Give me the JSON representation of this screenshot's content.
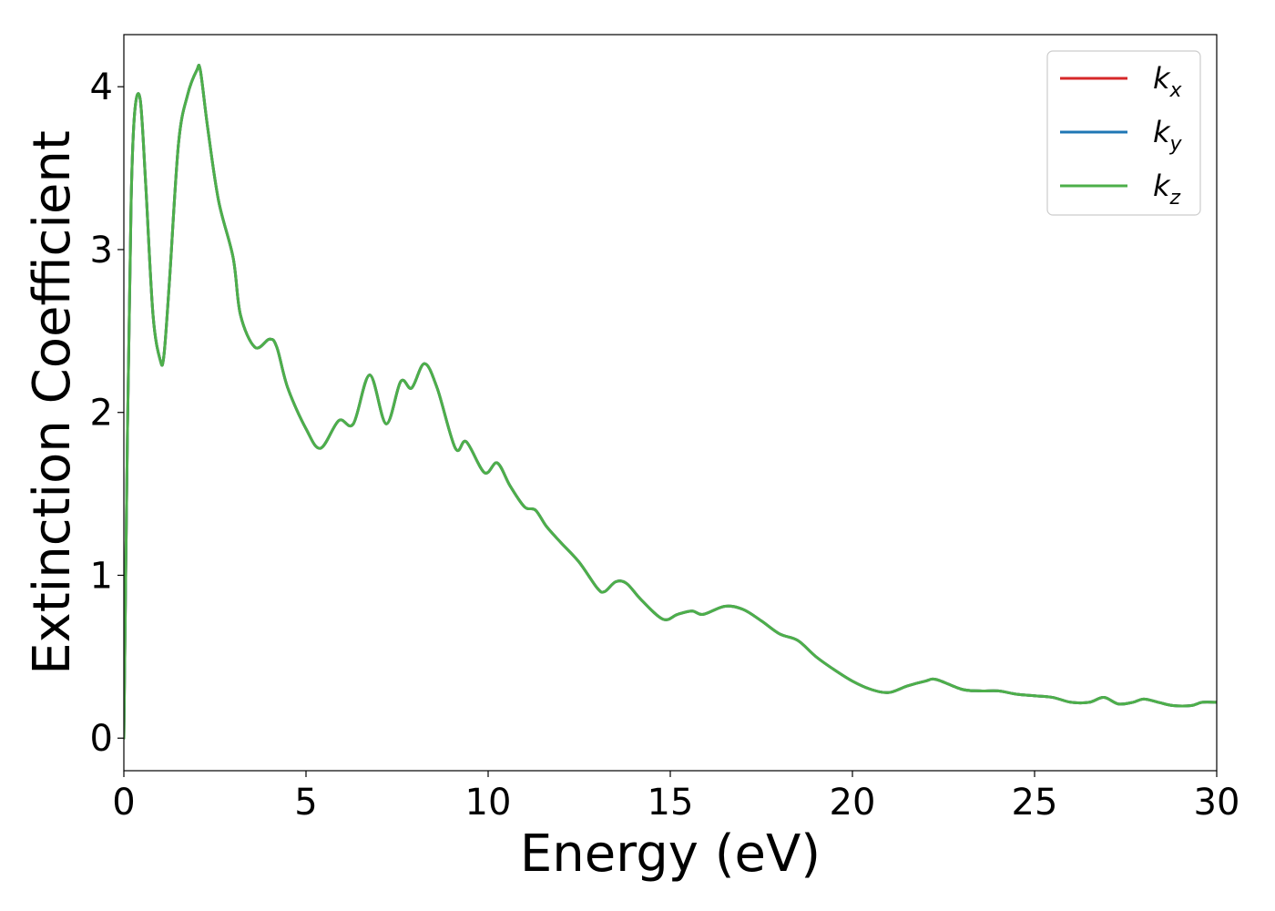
{
  "chart_data": {
    "type": "line",
    "title": "",
    "xlabel": "Energy (eV)",
    "ylabel": "Extinction Coefficient",
    "xlim": [
      0,
      30
    ],
    "ylim": [
      -0.2,
      4.32
    ],
    "xticks": [
      0,
      5,
      10,
      15,
      20,
      25,
      30
    ],
    "yticks": [
      0,
      1,
      2,
      3,
      4
    ],
    "grid": false,
    "legend_position": "top-right",
    "x": [
      0,
      0.1,
      0.2,
      0.3,
      0.45,
      0.6,
      0.8,
      1.0,
      1.1,
      1.25,
      1.5,
      1.75,
      2.0,
      2.1,
      2.3,
      2.6,
      3.0,
      3.2,
      3.6,
      4.0,
      4.2,
      4.5,
      5.0,
      5.4,
      5.9,
      6.3,
      6.75,
      7.2,
      7.6,
      7.9,
      8.25,
      8.6,
      9.1,
      9.4,
      9.9,
      10.25,
      10.6,
      11.0,
      11.3,
      11.6,
      12.0,
      12.5,
      13.0,
      13.2,
      13.5,
      13.8,
      14.2,
      14.8,
      15.2,
      15.6,
      15.9,
      16.5,
      17.0,
      17.5,
      18.0,
      18.5,
      19.0,
      19.5,
      20.0,
      20.5,
      21.0,
      21.5,
      22.0,
      22.3,
      23.0,
      23.5,
      24.0,
      24.5,
      25.0,
      25.5,
      26.0,
      26.5,
      26.9,
      27.3,
      27.7,
      28.0,
      28.4,
      28.8,
      29.3,
      29.6,
      30.0
    ],
    "series": [
      {
        "name": "k_x",
        "color": "#d62728",
        "values": [
          0.0,
          1.9,
          3.3,
          3.85,
          3.92,
          3.4,
          2.6,
          2.32,
          2.35,
          2.8,
          3.65,
          3.95,
          4.1,
          4.1,
          3.75,
          3.3,
          2.95,
          2.6,
          2.4,
          2.45,
          2.4,
          2.15,
          1.9,
          1.78,
          1.95,
          1.93,
          2.23,
          1.93,
          2.19,
          2.15,
          2.3,
          2.15,
          1.78,
          1.82,
          1.63,
          1.69,
          1.55,
          1.42,
          1.4,
          1.3,
          1.2,
          1.08,
          0.92,
          0.9,
          0.96,
          0.95,
          0.85,
          0.73,
          0.76,
          0.78,
          0.76,
          0.81,
          0.79,
          0.72,
          0.64,
          0.6,
          0.5,
          0.42,
          0.35,
          0.3,
          0.28,
          0.32,
          0.35,
          0.36,
          0.3,
          0.29,
          0.29,
          0.27,
          0.26,
          0.25,
          0.22,
          0.22,
          0.25,
          0.21,
          0.22,
          0.24,
          0.22,
          0.2,
          0.2,
          0.22,
          0.22
        ]
      },
      {
        "name": "k_y",
        "color": "#1f77b4",
        "values": [
          0.0,
          1.9,
          3.3,
          3.85,
          3.92,
          3.4,
          2.6,
          2.32,
          2.35,
          2.8,
          3.65,
          3.95,
          4.1,
          4.1,
          3.75,
          3.3,
          2.95,
          2.6,
          2.4,
          2.45,
          2.4,
          2.15,
          1.9,
          1.78,
          1.95,
          1.93,
          2.23,
          1.93,
          2.19,
          2.15,
          2.3,
          2.15,
          1.78,
          1.82,
          1.63,
          1.69,
          1.55,
          1.42,
          1.4,
          1.3,
          1.2,
          1.08,
          0.92,
          0.9,
          0.96,
          0.95,
          0.85,
          0.73,
          0.76,
          0.78,
          0.76,
          0.81,
          0.79,
          0.72,
          0.64,
          0.6,
          0.5,
          0.42,
          0.35,
          0.3,
          0.28,
          0.32,
          0.35,
          0.36,
          0.3,
          0.29,
          0.29,
          0.27,
          0.26,
          0.25,
          0.22,
          0.22,
          0.25,
          0.21,
          0.22,
          0.24,
          0.22,
          0.2,
          0.2,
          0.22,
          0.22
        ]
      },
      {
        "name": "k_z",
        "color": "#4daf4a",
        "values": [
          0.0,
          1.9,
          3.3,
          3.85,
          3.92,
          3.4,
          2.6,
          2.32,
          2.35,
          2.8,
          3.65,
          3.95,
          4.1,
          4.1,
          3.75,
          3.3,
          2.95,
          2.6,
          2.4,
          2.45,
          2.4,
          2.15,
          1.9,
          1.78,
          1.95,
          1.93,
          2.23,
          1.93,
          2.19,
          2.15,
          2.3,
          2.15,
          1.78,
          1.82,
          1.63,
          1.69,
          1.55,
          1.42,
          1.4,
          1.3,
          1.2,
          1.08,
          0.92,
          0.9,
          0.96,
          0.95,
          0.85,
          0.73,
          0.76,
          0.78,
          0.76,
          0.81,
          0.79,
          0.72,
          0.64,
          0.6,
          0.5,
          0.42,
          0.35,
          0.3,
          0.28,
          0.32,
          0.35,
          0.36,
          0.3,
          0.29,
          0.29,
          0.27,
          0.26,
          0.25,
          0.22,
          0.22,
          0.25,
          0.21,
          0.22,
          0.24,
          0.22,
          0.2,
          0.2,
          0.22,
          0.22
        ]
      }
    ],
    "legend": [
      {
        "base": "k",
        "sub": "x",
        "color": "#d62728"
      },
      {
        "base": "k",
        "sub": "y",
        "color": "#1f77b4"
      },
      {
        "base": "k",
        "sub": "z",
        "color": "#4daf4a"
      }
    ]
  }
}
